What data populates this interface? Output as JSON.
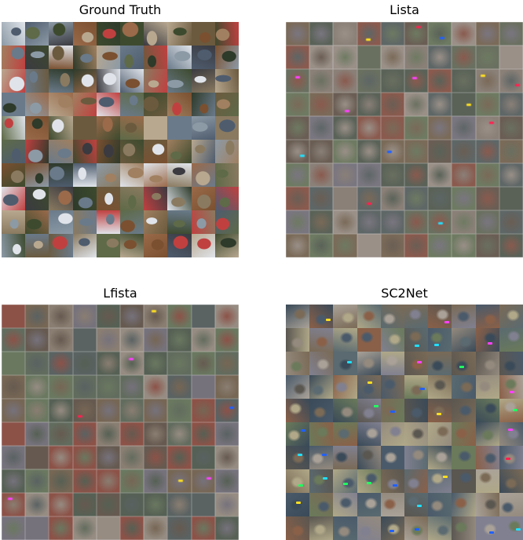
{
  "panels": [
    {
      "title": "Ground Truth",
      "style": "sharp",
      "description_key": "ground-truth",
      "palette": [
        "#6b5a3e",
        "#3d4a2e",
        "#8a7a60",
        "#4e5c6e",
        "#a08060",
        "#2e3a2a",
        "#b8a890",
        "#5e6a48",
        "#7a5030",
        "#c04040",
        "#8c9aa6",
        "#e0e4ea",
        "#3a3a40",
        "#9a6a4a",
        "#6a7a8a"
      ]
    },
    {
      "title": "Lista",
      "style": "blurry",
      "description_key": "lista",
      "palette": [
        "#7a6a58",
        "#6a7060",
        "#8a8078",
        "#5e6666",
        "#8a5a4e",
        "#6e7a62",
        "#9a9088",
        "#6a5e54",
        "#7a7680",
        "#5a6258"
      ]
    },
    {
      "title": "Lfista",
      "style": "blurry",
      "description_key": "lfista",
      "palette": [
        "#766654",
        "#626c5e",
        "#8a7e72",
        "#5a6262",
        "#8c5248",
        "#6a7860",
        "#968c82",
        "#665a50",
        "#76727c",
        "#566054"
      ]
    },
    {
      "title": "SC2Net",
      "style": "medium",
      "description_key": "sc2net",
      "palette": [
        "#7a6a56",
        "#5a6a70",
        "#948a7e",
        "#4a5a6a",
        "#8a6048",
        "#6a7a5a",
        "#aaa298",
        "#5a5650",
        "#808090",
        "#3a4a58",
        "#b0a888"
      ]
    }
  ],
  "specks": [
    "#ff2050",
    "#20ff60",
    "#2060ff",
    "#ffe020",
    "#ff40ff",
    "#20e0ff"
  ]
}
